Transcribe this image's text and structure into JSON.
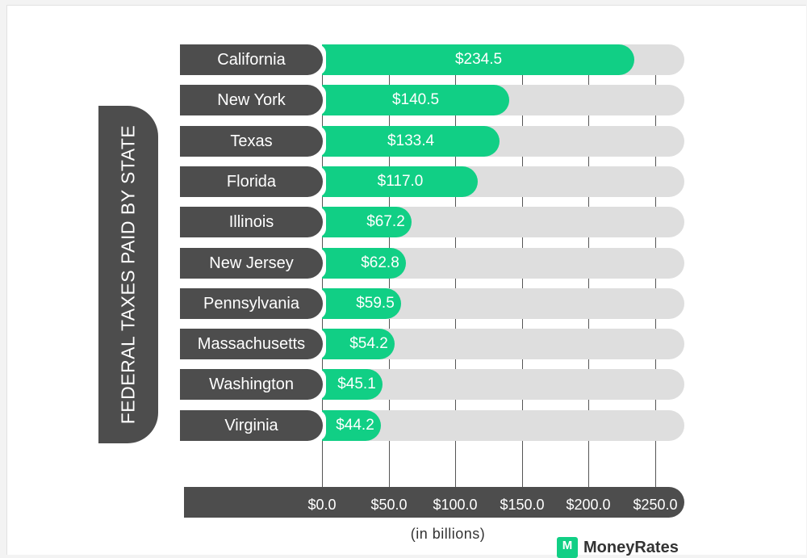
{
  "chart_data": {
    "type": "bar",
    "orientation": "horizontal",
    "title": "FEDERAL TAXES PAID BY STATE",
    "xlabel": "(in billions)",
    "ylabel": "",
    "xlim": [
      0,
      250
    ],
    "grid": true,
    "categories": [
      "California",
      "New York",
      "Texas",
      "Florida",
      "Illinois",
      "New Jersey",
      "Pennsylvania",
      "Massachusetts",
      "Washington",
      "Virginia"
    ],
    "values": [
      234.5,
      140.5,
      133.4,
      117.0,
      67.2,
      62.8,
      59.5,
      54.2,
      45.1,
      44.2
    ],
    "value_labels": [
      "$234.5",
      "$140.5",
      "$133.4",
      "$117.0",
      "$67.2",
      "$62.8",
      "$59.5",
      "$54.2",
      "$45.1",
      "$44.2"
    ],
    "ticks": [
      0,
      50,
      100,
      150,
      200,
      250
    ],
    "tick_labels": [
      "$0.0",
      "$50.0",
      "$100.0",
      "$150.0",
      "$200.0",
      "$250.0"
    ],
    "colors": {
      "bar": "#11cf85",
      "track": "#dedede",
      "label_box": "#4d4d4d",
      "text_on_dark": "#ffffff"
    }
  },
  "brand": {
    "mark": "M",
    "name": "MoneyRates"
  }
}
